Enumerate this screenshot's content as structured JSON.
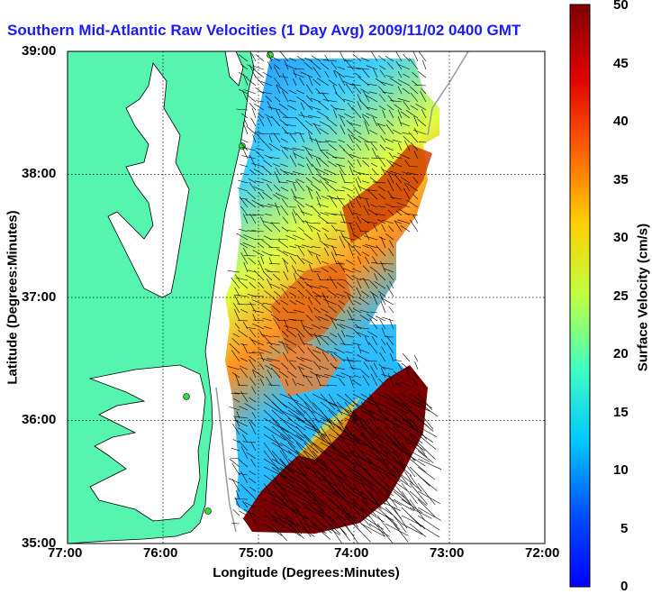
{
  "title": "Southern Mid-Atlantic Raw Velocities (1 Day Avg) 2009/11/02 0400 GMT",
  "axes": {
    "xlabel": "Longitude (Degrees:Minutes)",
    "ylabel": "Latitude (Degrees:Minutes)",
    "x_ticks": [
      "77:00",
      "76:00",
      "75:00",
      "74:00",
      "73:00",
      "72:00"
    ],
    "y_ticks": [
      "39:00",
      "38:00",
      "37:00",
      "36:00",
      "35:00"
    ],
    "xlim": [
      -77,
      -72
    ],
    "ylim": [
      35,
      39
    ],
    "grid": "dotted"
  },
  "colorbar": {
    "label": "Surface Velocity (cm/s)",
    "ticks": [
      "50",
      "45",
      "40",
      "35",
      "30",
      "25",
      "20",
      "15",
      "10",
      "5",
      "0"
    ],
    "range": [
      0,
      50
    ],
    "colormap": "jet"
  },
  "colors": {
    "land": "#55f5b0",
    "coastline": "#000000",
    "title": "#1a1aff",
    "stations": "#33dd33"
  }
}
